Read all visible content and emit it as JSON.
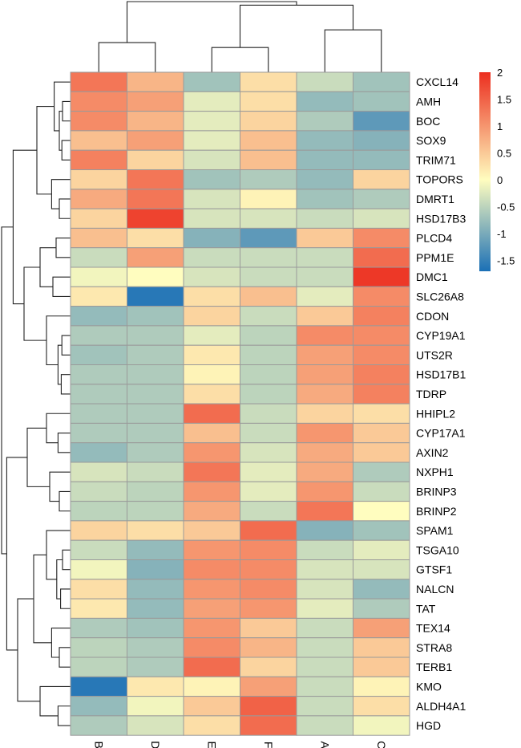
{
  "chart_data": {
    "type": "heatmap",
    "title": "",
    "columns": [
      "B",
      "D",
      "E",
      "F",
      "A",
      "C"
    ],
    "rows": [
      "CXCL14",
      "AMH",
      "BOC",
      "SOX9",
      "TRIM71",
      "TOPORS",
      "DMRT1",
      "HSD17B3",
      "PLCD4",
      "PPM1E",
      "DMC1",
      "SLC26A8",
      "CDON",
      "CYP19A1",
      "UTS2R",
      "HSD17B1",
      "TDRP",
      "HHIPL2",
      "CYP17A1",
      "AXIN2",
      "NXPH1",
      "BRINP3",
      "BRINP2",
      "SPAM1",
      "TSGA10",
      "GTSF1",
      "NALCN",
      "TAT",
      "TEX14",
      "STRA8",
      "TERB1",
      "KMO",
      "ALDH4A1",
      "HGD"
    ],
    "values": [
      [
        1.3,
        0.7,
        -0.7,
        0.3,
        -0.4,
        -0.7
      ],
      [
        1.1,
        0.9,
        -0.2,
        0.3,
        -0.8,
        -0.7
      ],
      [
        1.1,
        0.7,
        -0.2,
        0.4,
        -0.6,
        -1.2
      ],
      [
        0.6,
        0.9,
        -0.2,
        0.6,
        -0.8,
        -0.9
      ],
      [
        1.2,
        0.4,
        -0.3,
        0.6,
        -0.8,
        -0.8
      ],
      [
        0.4,
        1.3,
        -0.7,
        -0.6,
        -0.8,
        0.4
      ],
      [
        0.8,
        1.3,
        -0.3,
        0.1,
        -0.7,
        -0.6
      ],
      [
        0.4,
        1.8,
        -0.3,
        -0.3,
        -0.4,
        -0.3
      ],
      [
        0.6,
        0.3,
        -0.9,
        -1.2,
        0.5,
        1.1
      ],
      [
        -0.4,
        0.9,
        -0.4,
        -0.4,
        -0.4,
        1.4
      ],
      [
        -0.1,
        0.0,
        -0.3,
        -0.4,
        -0.4,
        1.9
      ],
      [
        0.2,
        -1.6,
        0.3,
        0.6,
        -0.2,
        1.1
      ],
      [
        -0.8,
        -0.7,
        0.4,
        -0.4,
        0.5,
        1.2
      ],
      [
        -0.6,
        -0.6,
        -0.2,
        -0.5,
        1.1,
        1.1
      ],
      [
        -0.7,
        -0.6,
        0.2,
        -0.5,
        0.9,
        1.1
      ],
      [
        -0.6,
        -0.6,
        0.1,
        -0.5,
        0.9,
        1.2
      ],
      [
        -0.6,
        -0.6,
        0.3,
        -0.5,
        0.8,
        1.2
      ],
      [
        -0.6,
        -0.6,
        1.4,
        -0.4,
        0.4,
        0.3
      ],
      [
        -0.6,
        -0.6,
        0.6,
        -0.4,
        1.0,
        0.5
      ],
      [
        -0.8,
        -0.6,
        1.0,
        -0.3,
        0.8,
        0.5
      ],
      [
        -0.3,
        -0.4,
        1.3,
        -0.2,
        0.8,
        -0.6
      ],
      [
        -0.4,
        -0.5,
        1.0,
        -0.2,
        1.0,
        -0.4
      ],
      [
        -0.5,
        -0.5,
        0.8,
        -0.4,
        1.3,
        0.0
      ],
      [
        0.4,
        0.3,
        0.5,
        1.4,
        -0.9,
        -0.7
      ],
      [
        -0.4,
        -0.8,
        1.0,
        1.1,
        -0.4,
        -0.2
      ],
      [
        -0.1,
        -0.9,
        1.1,
        1.1,
        -0.3,
        -0.3
      ],
      [
        0.3,
        -0.8,
        1.0,
        1.1,
        -0.3,
        -0.8
      ],
      [
        0.2,
        -0.8,
        0.9,
        1.0,
        -0.2,
        -0.6
      ],
      [
        -0.6,
        -0.7,
        1.0,
        0.5,
        -0.4,
        0.9
      ],
      [
        -0.5,
        -0.6,
        1.1,
        0.7,
        -0.4,
        0.5
      ],
      [
        -0.5,
        -0.6,
        1.4,
        0.4,
        -0.4,
        0.5
      ],
      [
        -1.6,
        0.2,
        0.1,
        0.9,
        -0.4,
        0.1
      ],
      [
        -0.8,
        -0.1,
        0.5,
        1.5,
        -0.4,
        0.3
      ],
      [
        -0.6,
        -0.3,
        0.3,
        1.4,
        -0.4,
        -0.1
      ]
    ],
    "color_scale": {
      "domain": [
        -1.7,
        0,
        2.0
      ],
      "low": "#1b70b6",
      "mid": "#fffdbf",
      "high": "#ec2e1f"
    },
    "legend": {
      "ticks": [
        2,
        1.5,
        1,
        0.5,
        0,
        -0.5,
        -1,
        -1.5
      ],
      "tick_labels": [
        "2",
        "1.5",
        "1",
        "0.5",
        "0",
        "-0.5",
        "-1",
        "-1.5"
      ],
      "position": "top-right"
    },
    "cell_border_color": "#9a9a9a",
    "dendrogram_color": "#222222",
    "xlabel": "",
    "ylabel": ""
  }
}
